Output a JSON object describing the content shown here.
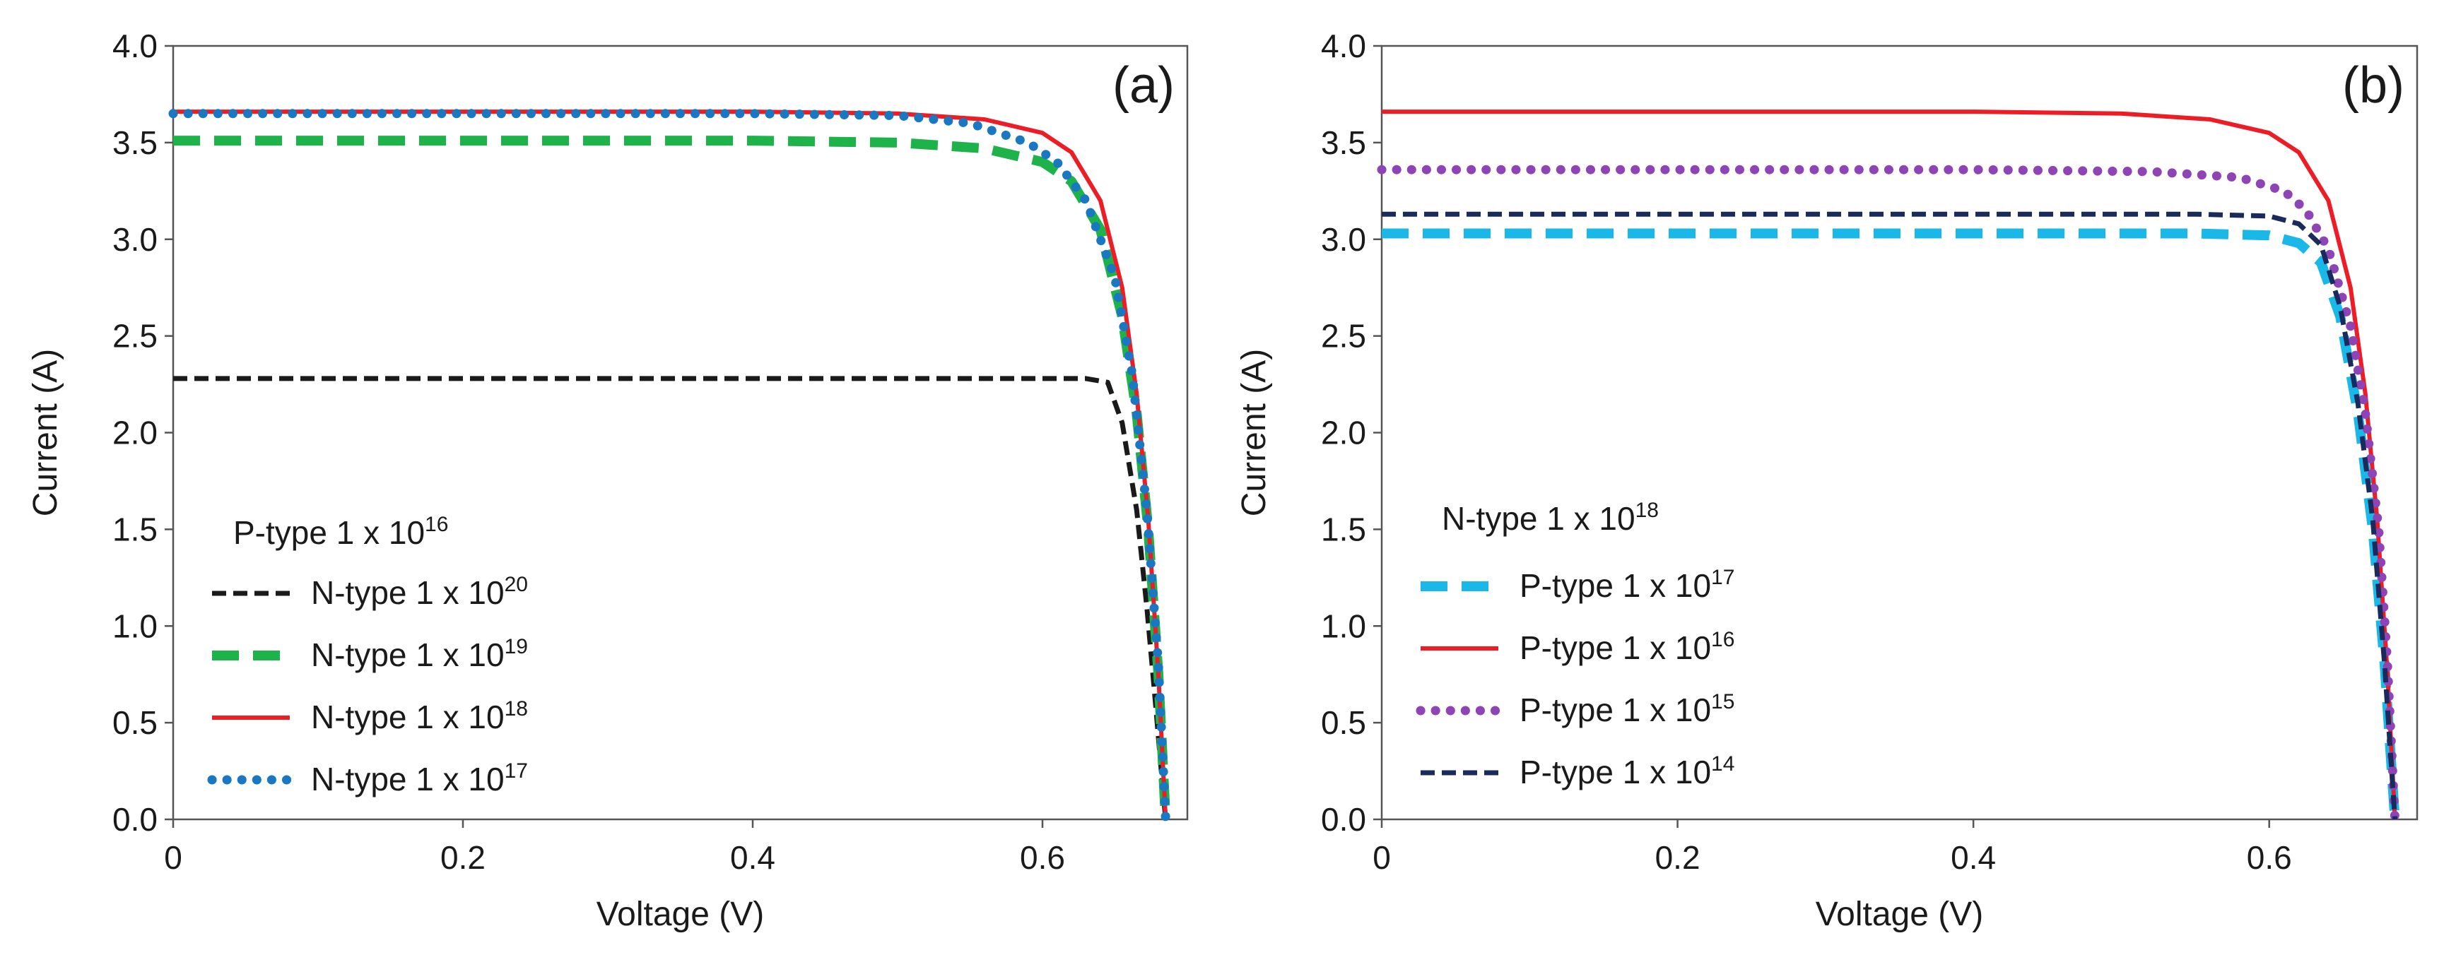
{
  "chart_data": [
    {
      "type": "line",
      "panel_label": "(a)",
      "xlabel": "Voltage (V)",
      "ylabel": "Current (A)",
      "xlim": [
        0,
        0.7
      ],
      "ylim": [
        0,
        4.0
      ],
      "xticks": [
        "0",
        "0.2",
        "0.4",
        "0.6"
      ],
      "xtick_values": [
        0,
        0.2,
        0.4,
        0.6
      ],
      "yticks": [
        "0.0",
        "0.5",
        "1.0",
        "1.5",
        "2.0",
        "2.5",
        "3.0",
        "3.5",
        "4.0"
      ],
      "ytick_values": [
        0,
        0.5,
        1.0,
        1.5,
        2.0,
        2.5,
        3.0,
        3.5,
        4.0
      ],
      "grid": false,
      "legend_title": {
        "text": "P-type 1 x 10",
        "sup": "16"
      },
      "legend_position": "bottom-left",
      "series": [
        {
          "name": "N-type 1 x 10",
          "sup": "20",
          "color": "#1a1a1a",
          "style": "dash-dot",
          "isc": 2.28,
          "voc": 0.685,
          "x": [
            0,
            0.2,
            0.4,
            0.55,
            0.63,
            0.645,
            0.655,
            0.665,
            0.672,
            0.678,
            0.682,
            0.685
          ],
          "y": [
            2.28,
            2.28,
            2.28,
            2.28,
            2.28,
            2.26,
            2.05,
            1.6,
            1.1,
            0.6,
            0.25,
            0.0
          ]
        },
        {
          "name": "N-type 1 x 10",
          "sup": "19",
          "color": "#1db34a",
          "style": "long-dash",
          "isc": 3.51,
          "voc": 0.685,
          "x": [
            0,
            0.2,
            0.4,
            0.5,
            0.56,
            0.6,
            0.62,
            0.64,
            0.655,
            0.665,
            0.673,
            0.68,
            0.685
          ],
          "y": [
            3.51,
            3.51,
            3.51,
            3.5,
            3.47,
            3.4,
            3.3,
            3.05,
            2.6,
            2.1,
            1.5,
            0.75,
            0.0
          ]
        },
        {
          "name": "N-type 1 x 10",
          "sup": "18",
          "color": "#ee1c25",
          "style": "solid",
          "isc": 3.66,
          "voc": 0.685,
          "x": [
            0,
            0.2,
            0.4,
            0.5,
            0.56,
            0.6,
            0.62,
            0.64,
            0.655,
            0.665,
            0.673,
            0.68,
            0.685
          ],
          "y": [
            3.66,
            3.66,
            3.66,
            3.65,
            3.62,
            3.55,
            3.45,
            3.2,
            2.75,
            2.2,
            1.55,
            0.75,
            0.0
          ]
        },
        {
          "name": "N-type 1 x 10",
          "sup": "17",
          "color": "#1a78c2",
          "style": "dotted",
          "isc": 3.65,
          "voc": 0.685,
          "x": [
            0,
            0.2,
            0.4,
            0.5,
            0.55,
            0.59,
            0.61,
            0.63,
            0.65,
            0.662,
            0.672,
            0.68,
            0.685
          ],
          "y": [
            3.65,
            3.65,
            3.65,
            3.64,
            3.6,
            3.5,
            3.4,
            3.2,
            2.8,
            2.3,
            1.6,
            0.8,
            0.0
          ]
        }
      ]
    },
    {
      "type": "line",
      "panel_label": "(b)",
      "xlabel": "Voltage (V)",
      "ylabel": "Current (A)",
      "xlim": [
        0,
        0.7
      ],
      "ylim": [
        0,
        4.0
      ],
      "xticks": [
        "0",
        "0.2",
        "0.4",
        "0.6"
      ],
      "xtick_values": [
        0,
        0.2,
        0.4,
        0.6
      ],
      "yticks": [
        "0.0",
        "0.5",
        "1.0",
        "1.5",
        "2.0",
        "2.5",
        "3.0",
        "3.5",
        "4.0"
      ],
      "ytick_values": [
        0,
        0.5,
        1.0,
        1.5,
        2.0,
        2.5,
        3.0,
        3.5,
        4.0
      ],
      "grid": false,
      "legend_title": {
        "text": "N-type 1 x 10",
        "sup": "18"
      },
      "legend_position": "bottom-left",
      "series": [
        {
          "name": "P-type 1 x 10",
          "sup": "17",
          "color": "#1ab8e8",
          "style": "long-dash",
          "isc": 3.03,
          "voc": 0.685,
          "x": [
            0,
            0.2,
            0.4,
            0.55,
            0.6,
            0.62,
            0.635,
            0.648,
            0.66,
            0.67,
            0.678,
            0.685
          ],
          "y": [
            3.03,
            3.03,
            3.03,
            3.03,
            3.02,
            2.98,
            2.88,
            2.6,
            2.1,
            1.5,
            0.8,
            0.0
          ]
        },
        {
          "name": "P-type 1 x 10",
          "sup": "16",
          "color": "#ee1c25",
          "style": "solid",
          "isc": 3.66,
          "voc": 0.685,
          "x": [
            0,
            0.2,
            0.4,
            0.5,
            0.56,
            0.6,
            0.62,
            0.64,
            0.655,
            0.665,
            0.673,
            0.68,
            0.685
          ],
          "y": [
            3.66,
            3.66,
            3.66,
            3.65,
            3.62,
            3.55,
            3.45,
            3.2,
            2.75,
            2.2,
            1.55,
            0.75,
            0.0
          ]
        },
        {
          "name": "P-type 1 x 10",
          "sup": "15",
          "color": "#8e44b5",
          "style": "dotted",
          "isc": 3.36,
          "voc": 0.685,
          "x": [
            0,
            0.2,
            0.4,
            0.52,
            0.58,
            0.61,
            0.625,
            0.64,
            0.655,
            0.665,
            0.674,
            0.68,
            0.685
          ],
          "y": [
            3.36,
            3.36,
            3.36,
            3.35,
            3.32,
            3.25,
            3.15,
            2.95,
            2.55,
            2.1,
            1.5,
            0.8,
            0.0
          ]
        },
        {
          "name": "P-type 1 x 10",
          "sup": "14",
          "color": "#1b2a5c",
          "style": "dash-dot",
          "isc": 3.13,
          "voc": 0.685,
          "x": [
            0,
            0.2,
            0.4,
            0.55,
            0.6,
            0.62,
            0.635,
            0.648,
            0.66,
            0.67,
            0.678,
            0.685
          ],
          "y": [
            3.13,
            3.13,
            3.13,
            3.13,
            3.12,
            3.08,
            2.97,
            2.65,
            2.15,
            1.55,
            0.8,
            0.0
          ]
        }
      ]
    }
  ]
}
